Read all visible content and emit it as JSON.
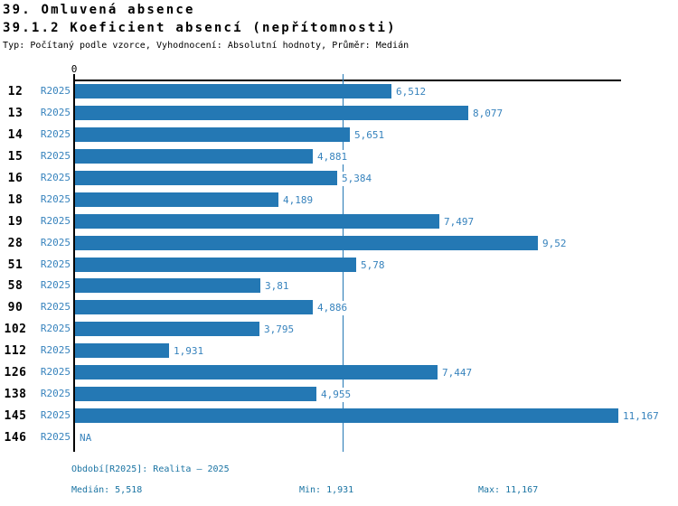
{
  "header": {
    "title1": "39. Omluvená absence",
    "title2": "39.1.2 Koeficient absencí (nepřítomnosti)",
    "subtitle": "Typ: Počítaný podle vzorce, Vyhodnocení: Absolutní hodnoty, Průměr: Medián"
  },
  "chart_data": {
    "type": "bar",
    "orientation": "horizontal",
    "series_label": "R2025",
    "categories": [
      "12",
      "13",
      "14",
      "15",
      "16",
      "18",
      "19",
      "28",
      "51",
      "58",
      "90",
      "102",
      "112",
      "126",
      "138",
      "145",
      "146"
    ],
    "values": [
      6.512,
      8.077,
      5.651,
      4.881,
      5.384,
      4.189,
      7.497,
      9.52,
      5.78,
      3.81,
      4.886,
      3.795,
      1.931,
      7.447,
      4.955,
      11.167,
      null
    ],
    "value_labels": [
      "6,512",
      "8,077",
      "5,651",
      "4,881",
      "5,384",
      "4,189",
      "7,497",
      "9,52",
      "5,78",
      "3,81",
      "4,886",
      "3,795",
      "1,931",
      "7,447",
      "4,955",
      "11,167",
      "NA"
    ],
    "xlim": [
      0,
      11.167
    ],
    "x_axis_ticks": [
      "0"
    ],
    "median": 5.518,
    "grid": false,
    "legend": "none",
    "bar_color": "#2478b4",
    "label_color": "#3783bd",
    "median_line_color": "#2478b4"
  },
  "footer": {
    "period": "Období[R2025]: Realita – 2025",
    "median": "Medián: 5,518",
    "min": "Min: 1,931",
    "max": "Max: 11,167",
    "text_color": "#1b74a3"
  }
}
